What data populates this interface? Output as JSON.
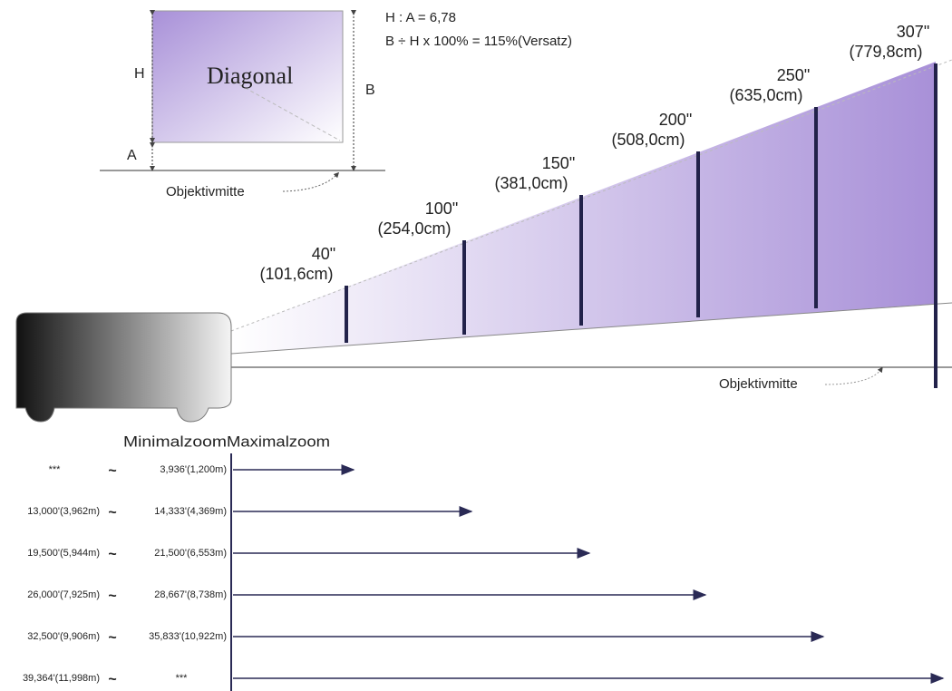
{
  "inset": {
    "formula_1": "H : A = 6,78",
    "formula_2": "B ÷ H x 100% = 115%(Versatz)",
    "label_h": "H",
    "label_a": "A",
    "label_b": "B",
    "diagonal": "Diagonal",
    "lens_center": "Objektivmitte"
  },
  "screens": [
    {
      "size": "40\"",
      "metric": "(101,6cm)"
    },
    {
      "size": "100\"",
      "metric": "(254,0cm)"
    },
    {
      "size": "150\"",
      "metric": "(381,0cm)"
    },
    {
      "size": "200\"",
      "metric": "(508,0cm)"
    },
    {
      "size": "250\"",
      "metric": "(635,0cm)"
    },
    {
      "size": "307\"",
      "metric": "(779,8cm)"
    }
  ],
  "lens_center": "Objektivmitte",
  "table": {
    "headers": [
      "Minimalzoom",
      "Maximalzoom"
    ],
    "rows": [
      {
        "min": "***",
        "sep": "~",
        "max": "3,936'(1,200m)"
      },
      {
        "min": "13,000'(3,962m)",
        "sep": "~",
        "max": "14,333'(4,369m)"
      },
      {
        "min": "19,500'(5,944m)",
        "sep": "~",
        "max": "21,500'(6,553m)"
      },
      {
        "min": "26,000'(7,925m)",
        "sep": "~",
        "max": "28,667'(8,738m)"
      },
      {
        "min": "32,500'(9,906m)",
        "sep": "~",
        "max": "35,833'(10,922m)"
      },
      {
        "min": "39,364'(11,998m)",
        "sep": "~",
        "max": "***"
      }
    ]
  }
}
